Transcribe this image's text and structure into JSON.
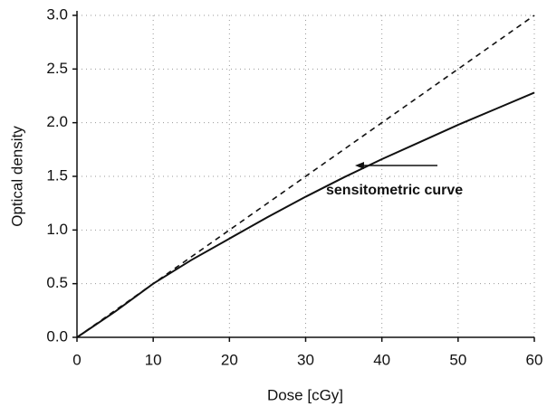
{
  "chart_data": {
    "type": "line",
    "xlabel": "Dose  [cGy]",
    "ylabel": "Optical density",
    "annotations": [
      "sensitometric curve"
    ],
    "series": [
      {
        "color": "#111111",
        "dash": "solid",
        "x": [
          0,
          5,
          10,
          15,
          20,
          25,
          30,
          35,
          40,
          45,
          50,
          55,
          60
        ],
        "values": [
          0,
          0.24,
          0.5,
          0.72,
          0.92,
          1.12,
          1.31,
          1.49,
          1.66,
          1.82,
          1.98,
          2.13,
          2.28
        ]
      },
      {
        "color": "#111111",
        "dash": "dashed",
        "x": [
          0,
          60
        ],
        "values": [
          0,
          3
        ]
      }
    ],
    "xlim": [
      0,
      60
    ],
    "xticks": [
      0,
      10,
      20,
      30,
      40,
      50,
      60
    ],
    "ylim": [
      0,
      3
    ],
    "yticks": [
      {
        "value": 0,
        "label": "0.0"
      },
      0.5,
      {
        "value": 1,
        "label": "1.0"
      },
      1.5,
      {
        "value": 2,
        "label": "2.0"
      },
      2.5,
      {
        "value": 3,
        "label": "3.0"
      }
    ],
    "grid": true
  }
}
